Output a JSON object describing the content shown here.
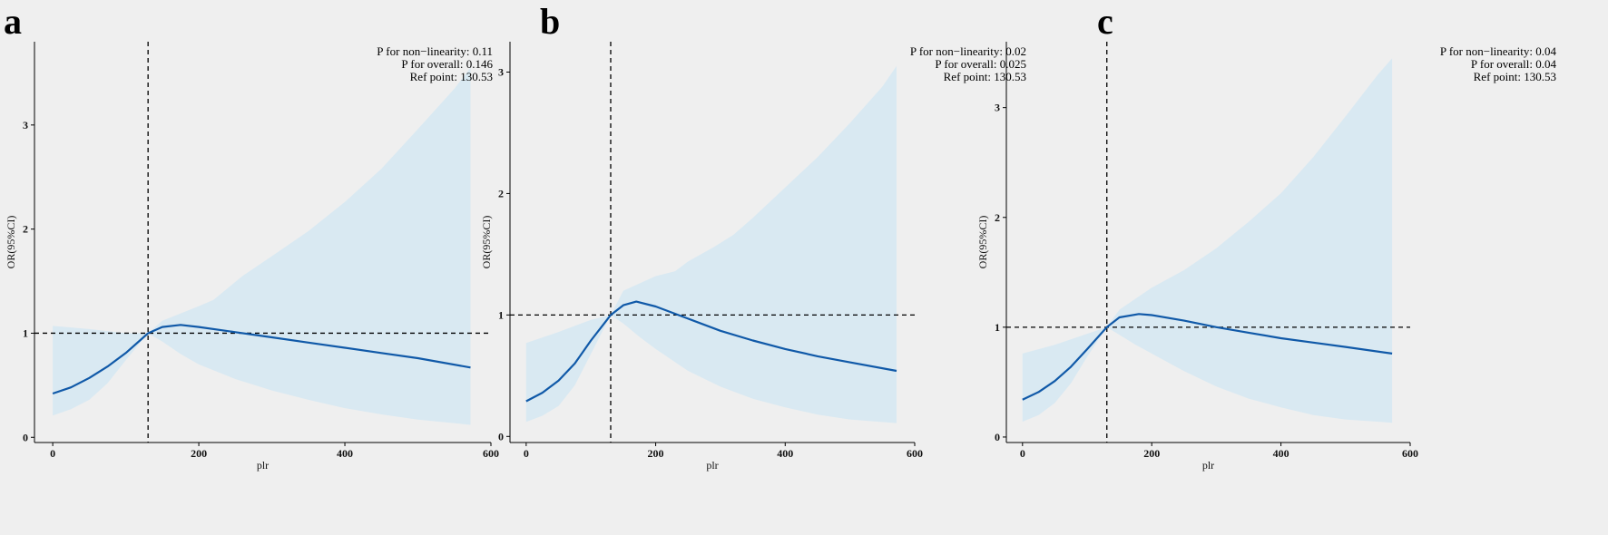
{
  "chart_data": [
    {
      "type": "line",
      "panel": "a",
      "xlabel": "plr",
      "ylabel": "OR(95%CI)",
      "xlim": [
        -25,
        600
      ],
      "ylim": [
        -0.05,
        3.8
      ],
      "xticks": [
        0,
        200,
        400,
        600
      ],
      "yticks": [
        0,
        1,
        2,
        3
      ],
      "ref_x": 130.53,
      "ref_y": 1,
      "annotations": [
        {
          "label": "P for non−linearity:",
          "value": "0.11"
        },
        {
          "label": "P for overall:",
          "value": "0.146"
        },
        {
          "label": "Ref point:",
          "value": "130.53"
        }
      ],
      "series": [
        {
          "x": [
            0,
            25,
            50,
            75,
            100,
            130.53,
            150,
            175,
            200,
            250,
            300,
            350,
            400,
            450,
            500,
            572
          ],
          "y": [
            0.42,
            0.48,
            0.57,
            0.68,
            0.81,
            1.0,
            1.06,
            1.08,
            1.06,
            1.01,
            0.96,
            0.91,
            0.86,
            0.81,
            0.76,
            0.67
          ]
        },
        {
          "x": [
            0,
            50,
            100,
            130.53,
            150,
            200,
            220,
            260,
            300,
            350,
            400,
            450,
            500,
            550,
            572
          ],
          "y": [
            1.07,
            1.04,
            1.0,
            1.0,
            1.12,
            1.26,
            1.32,
            1.55,
            1.74,
            1.98,
            2.26,
            2.58,
            2.96,
            3.35,
            3.55
          ]
        },
        {
          "x": [
            0,
            25,
            50,
            75,
            100,
            130.53,
            150,
            175,
            200,
            250,
            300,
            350,
            400,
            450,
            500,
            572
          ],
          "y": [
            0.21,
            0.27,
            0.36,
            0.52,
            0.74,
            1.0,
            0.92,
            0.8,
            0.7,
            0.56,
            0.45,
            0.36,
            0.28,
            0.22,
            0.17,
            0.12
          ]
        }
      ]
    },
    {
      "type": "line",
      "panel": "b",
      "xlabel": "plr",
      "ylabel": "OR(95%CI)",
      "xlim": [
        -25,
        600
      ],
      "ylim": [
        -0.05,
        3.25
      ],
      "xticks": [
        0,
        200,
        400,
        600
      ],
      "yticks": [
        0,
        1,
        2,
        3
      ],
      "ref_x": 130.53,
      "ref_y": 1,
      "annotations": [
        {
          "label": "P for non−linearity:",
          "value": "0.02"
        },
        {
          "label": "P for overall:",
          "value": "0.025"
        },
        {
          "label": "Ref point:",
          "value": "130.53"
        }
      ],
      "series": [
        {
          "x": [
            0,
            25,
            50,
            75,
            100,
            130.53,
            150,
            170,
            200,
            250,
            300,
            350,
            400,
            450,
            500,
            572
          ],
          "y": [
            0.29,
            0.36,
            0.46,
            0.6,
            0.79,
            1.0,
            1.08,
            1.11,
            1.07,
            0.97,
            0.87,
            0.79,
            0.72,
            0.66,
            0.61,
            0.54
          ]
        },
        {
          "x": [
            0,
            50,
            100,
            130.53,
            150,
            200,
            230,
            250,
            290,
            320,
            350,
            400,
            450,
            500,
            550,
            572
          ],
          "y": [
            0.77,
            0.86,
            0.96,
            1.0,
            1.2,
            1.32,
            1.36,
            1.44,
            1.56,
            1.66,
            1.8,
            2.05,
            2.3,
            2.58,
            2.88,
            3.05
          ]
        },
        {
          "x": [
            0,
            25,
            50,
            75,
            100,
            130.53,
            150,
            175,
            200,
            250,
            300,
            350,
            400,
            450,
            500,
            572
          ],
          "y": [
            0.12,
            0.17,
            0.25,
            0.42,
            0.68,
            1.0,
            0.93,
            0.82,
            0.72,
            0.54,
            0.41,
            0.31,
            0.24,
            0.18,
            0.14,
            0.11
          ]
        }
      ]
    },
    {
      "type": "line",
      "panel": "c",
      "xlabel": "plr",
      "ylabel": "OR(95%CI)",
      "xlim": [
        -25,
        600
      ],
      "ylim": [
        -0.05,
        3.6
      ],
      "xticks": [
        0,
        200,
        400,
        600
      ],
      "yticks": [
        0,
        1,
        2,
        3
      ],
      "ref_x": 130.53,
      "ref_y": 1,
      "annotations": [
        {
          "label": "P for non−linearity:",
          "value": "0.04"
        },
        {
          "label": "P for overall:",
          "value": "0.04"
        },
        {
          "label": "Ref point:",
          "value": "130.53"
        }
      ],
      "series": [
        {
          "x": [
            0,
            25,
            50,
            75,
            100,
            130.53,
            150,
            180,
            200,
            250,
            300,
            350,
            400,
            450,
            500,
            572
          ],
          "y": [
            0.34,
            0.41,
            0.51,
            0.64,
            0.8,
            1.0,
            1.09,
            1.12,
            1.11,
            1.06,
            1.0,
            0.95,
            0.9,
            0.86,
            0.82,
            0.76
          ]
        },
        {
          "x": [
            0,
            50,
            100,
            130.53,
            150,
            200,
            250,
            300,
            350,
            400,
            450,
            500,
            550,
            572
          ],
          "y": [
            0.76,
            0.84,
            0.94,
            1.0,
            1.16,
            1.36,
            1.52,
            1.72,
            1.96,
            2.22,
            2.55,
            2.92,
            3.3,
            3.45
          ]
        },
        {
          "x": [
            0,
            25,
            50,
            75,
            100,
            130.53,
            150,
            175,
            200,
            250,
            300,
            350,
            400,
            450,
            500,
            572
          ],
          "y": [
            0.14,
            0.2,
            0.31,
            0.49,
            0.73,
            1.0,
            0.93,
            0.84,
            0.76,
            0.6,
            0.46,
            0.35,
            0.27,
            0.2,
            0.16,
            0.13
          ]
        }
      ]
    }
  ],
  "colors": {
    "background": "#efefef",
    "line": "#1059a8",
    "band": "#d9e9f2",
    "reference": "#000000"
  }
}
